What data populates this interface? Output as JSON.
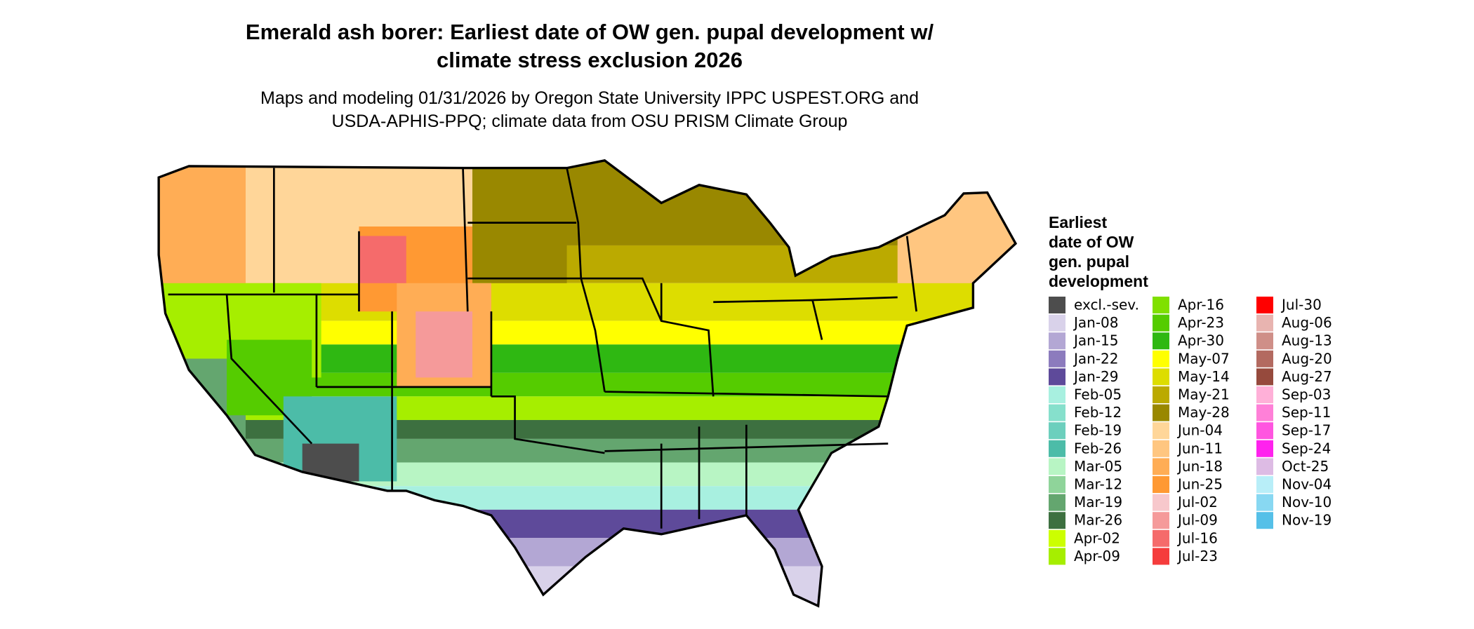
{
  "header": {
    "title": [
      "Emerald ash borer: Earliest date of OW gen. pupal development w/",
      "climate stress exclusion 2026"
    ],
    "subtitle": [
      "Maps and modeling 01/31/2026 by Oregon State University IPPC USPEST.ORG and",
      "USDA-APHIS-PPQ; climate data from OSU PRISM Climate Group"
    ]
  },
  "legend": {
    "title": [
      "Earliest",
      "date of OW",
      "gen. pupal",
      "development"
    ],
    "entries": [
      {
        "label": "excl.-sev.",
        "color": "#4d4d4d"
      },
      {
        "label": "Jan-08",
        "color": "#d9d2ea"
      },
      {
        "label": "Jan-15",
        "color": "#b3a7d4"
      },
      {
        "label": "Jan-22",
        "color": "#8c7bbd"
      },
      {
        "label": "Jan-29",
        "color": "#5e4a9a"
      },
      {
        "label": "Feb-05",
        "color": "#a8f0e0"
      },
      {
        "label": "Feb-12",
        "color": "#86e0cc"
      },
      {
        "label": "Feb-19",
        "color": "#6ccfbd"
      },
      {
        "label": "Feb-26",
        "color": "#4cbca8"
      },
      {
        "label": "Mar-05",
        "color": "#b8f5c4"
      },
      {
        "label": "Mar-12",
        "color": "#8fd49a"
      },
      {
        "label": "Mar-19",
        "color": "#64a66f"
      },
      {
        "label": "Mar-26",
        "color": "#3d7040"
      },
      {
        "label": "Apr-02",
        "color": "#ccff00"
      },
      {
        "label": "Apr-09",
        "color": "#a6ee00"
      },
      {
        "label": "Apr-16",
        "color": "#80e000"
      },
      {
        "label": "Apr-23",
        "color": "#55cc00"
      },
      {
        "label": "Apr-30",
        "color": "#2fb812"
      },
      {
        "label": "May-07",
        "color": "#ffff00"
      },
      {
        "label": "May-14",
        "color": "#dddd00"
      },
      {
        "label": "May-21",
        "color": "#bbaa00"
      },
      {
        "label": "May-28",
        "color": "#998800"
      },
      {
        "label": "Jun-04",
        "color": "#ffd699"
      },
      {
        "label": "Jun-11",
        "color": "#ffc680"
      },
      {
        "label": "Jun-18",
        "color": "#ffad55"
      },
      {
        "label": "Jun-25",
        "color": "#ff9933"
      },
      {
        "label": "Jul-02",
        "color": "#f7c8cc"
      },
      {
        "label": "Jul-09",
        "color": "#f59a9a"
      },
      {
        "label": "Jul-16",
        "color": "#f56b6b"
      },
      {
        "label": "Jul-23",
        "color": "#f53c3c"
      },
      {
        "label": "Jul-30",
        "color": "#ff0000"
      },
      {
        "label": "Aug-06",
        "color": "#e8b4b0"
      },
      {
        "label": "Aug-13",
        "color": "#cf8f88"
      },
      {
        "label": "Aug-20",
        "color": "#b36a60"
      },
      {
        "label": "Aug-27",
        "color": "#964a3d"
      },
      {
        "label": "Sep-03",
        "color": "#ffb0d8"
      },
      {
        "label": "Sep-11",
        "color": "#ff80d8"
      },
      {
        "label": "Sep-17",
        "color": "#ff55e0"
      },
      {
        "label": "Sep-24",
        "color": "#ff22ee"
      },
      {
        "label": "Oct-25",
        "color": "#ddbbe4"
      },
      {
        "label": "Nov-04",
        "color": "#b8eef8"
      },
      {
        "label": "Nov-10",
        "color": "#88d8f2"
      },
      {
        "label": "Nov-19",
        "color": "#55c0e8"
      }
    ]
  }
}
